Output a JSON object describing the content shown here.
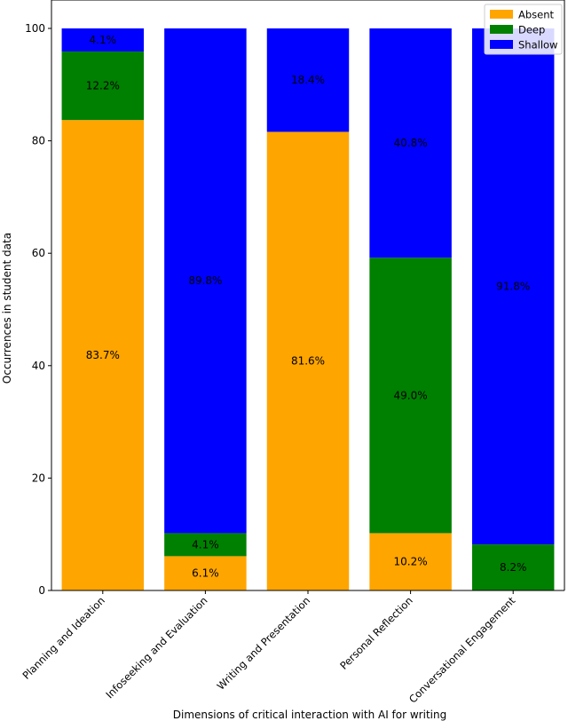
{
  "chart_data": {
    "type": "bar",
    "stacked": true,
    "title": "",
    "xlabel": "Dimensions of critical interaction with AI for writing",
    "ylabel": "Occurrences in student data",
    "ylim": [
      0,
      100
    ],
    "yticks": [
      0,
      20,
      40,
      60,
      80,
      100
    ],
    "categories": [
      "Planning and Ideation",
      "Infoseeking and Evaluation",
      "Writing and Presentation",
      "Personal Reflection",
      "Conversational Engagement"
    ],
    "series": [
      {
        "name": "Absent",
        "color": "#ffa500",
        "values": [
          83.7,
          6.1,
          81.6,
          10.2,
          0.0
        ],
        "labels": [
          "83.7%",
          "6.1%",
          "81.6%",
          "10.2%",
          ""
        ]
      },
      {
        "name": "Deep",
        "color": "#008000",
        "values": [
          12.2,
          4.1,
          0.0,
          49.0,
          8.2
        ],
        "labels": [
          "12.2%",
          "4.1%",
          "",
          "49.0%",
          "8.2%"
        ]
      },
      {
        "name": "Shallow",
        "color": "#0000ff",
        "values": [
          4.1,
          89.8,
          18.4,
          40.8,
          91.8
        ],
        "labels": [
          "4.1%",
          "89.8%",
          "18.4%",
          "40.8%",
          "91.8%"
        ]
      }
    ],
    "legend": {
      "position": "top-right",
      "entries": [
        "Absent",
        "Deep",
        "Shallow"
      ]
    }
  }
}
